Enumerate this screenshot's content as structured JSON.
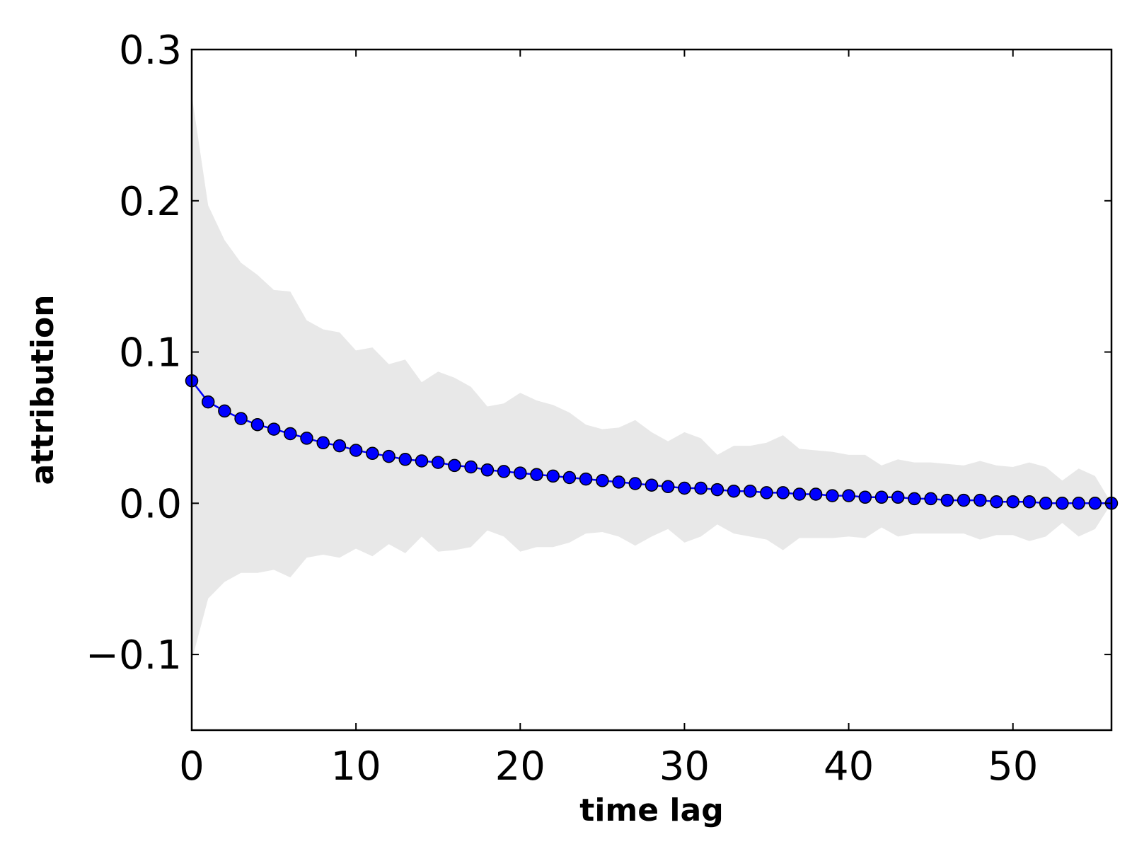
{
  "chart_data": {
    "type": "line",
    "title": "",
    "xlabel": "time lag",
    "ylabel": "attribution",
    "xlim": [
      0,
      56
    ],
    "ylim": [
      -0.15,
      0.3
    ],
    "x_ticks": [
      0,
      10,
      20,
      30,
      40,
      50
    ],
    "x_tick_labels": [
      "0",
      "10",
      "20",
      "30",
      "40",
      "50"
    ],
    "y_ticks": [
      -0.1,
      0.0,
      0.1,
      0.2,
      0.3
    ],
    "y_tick_labels": [
      "−0.1",
      "0.0",
      "0.1",
      "0.2",
      "0.3"
    ],
    "grid": false,
    "legend": "none",
    "colors": {
      "line": "#0000ff",
      "marker_edge": "#000000",
      "band": "#e8e8e8",
      "axes": "#000000"
    },
    "x": [
      0,
      1,
      2,
      3,
      4,
      5,
      6,
      7,
      8,
      9,
      10,
      11,
      12,
      13,
      14,
      15,
      16,
      17,
      18,
      19,
      20,
      21,
      22,
      23,
      24,
      25,
      26,
      27,
      28,
      29,
      30,
      31,
      32,
      33,
      34,
      35,
      36,
      37,
      38,
      39,
      40,
      41,
      42,
      43,
      44,
      45,
      46,
      47,
      48,
      49,
      50,
      51,
      52,
      53,
      54,
      55,
      56
    ],
    "series": [
      {
        "values": [
          0.081,
          0.067,
          0.061,
          0.056,
          0.052,
          0.049,
          0.046,
          0.043,
          0.04,
          0.038,
          0.035,
          0.033,
          0.031,
          0.029,
          0.028,
          0.027,
          0.025,
          0.024,
          0.022,
          0.021,
          0.02,
          0.019,
          0.018,
          0.017,
          0.016,
          0.015,
          0.014,
          0.013,
          0.012,
          0.011,
          0.01,
          0.01,
          0.009,
          0.008,
          0.008,
          0.007,
          0.007,
          0.006,
          0.006,
          0.005,
          0.005,
          0.004,
          0.004,
          0.004,
          0.003,
          0.003,
          0.002,
          0.002,
          0.002,
          0.001,
          0.001,
          0.001,
          0.0,
          0.0,
          0.0,
          0.0,
          0.0
        ]
      }
    ],
    "band": {
      "upper": [
        0.27,
        0.197,
        0.174,
        0.159,
        0.151,
        0.141,
        0.14,
        0.121,
        0.115,
        0.113,
        0.101,
        0.103,
        0.092,
        0.095,
        0.08,
        0.087,
        0.083,
        0.077,
        0.064,
        0.066,
        0.073,
        0.068,
        0.065,
        0.06,
        0.052,
        0.049,
        0.05,
        0.055,
        0.047,
        0.041,
        0.047,
        0.043,
        0.032,
        0.038,
        0.038,
        0.04,
        0.045,
        0.036,
        0.035,
        0.034,
        0.032,
        0.032,
        0.025,
        0.029,
        0.027,
        0.027,
        0.026,
        0.025,
        0.028,
        0.025,
        0.024,
        0.027,
        0.024,
        0.015,
        0.023,
        0.018,
        0.0
      ],
      "lower": [
        -0.104,
        -0.063,
        -0.052,
        -0.046,
        -0.046,
        -0.044,
        -0.049,
        -0.036,
        -0.034,
        -0.036,
        -0.03,
        -0.035,
        -0.027,
        -0.033,
        -0.022,
        -0.032,
        -0.031,
        -0.029,
        -0.018,
        -0.022,
        -0.032,
        -0.029,
        -0.029,
        -0.026,
        -0.02,
        -0.019,
        -0.022,
        -0.028,
        -0.022,
        -0.017,
        -0.026,
        -0.022,
        -0.014,
        -0.02,
        -0.022,
        -0.024,
        -0.031,
        -0.023,
        -0.023,
        -0.023,
        -0.022,
        -0.023,
        -0.016,
        -0.022,
        -0.02,
        -0.02,
        -0.02,
        -0.02,
        -0.024,
        -0.021,
        -0.021,
        -0.025,
        -0.022,
        -0.013,
        -0.022,
        -0.017,
        0.0
      ]
    }
  }
}
